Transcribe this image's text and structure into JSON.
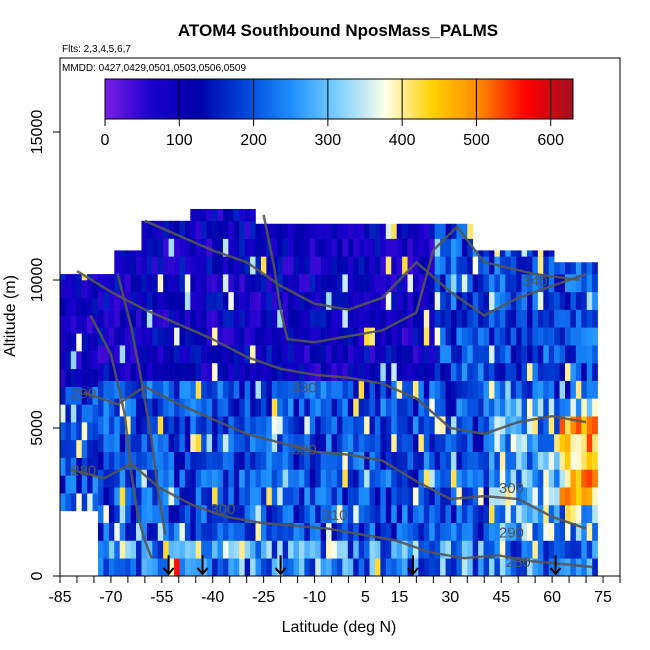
{
  "chart_data": {
    "type": "heatmap",
    "title": "ATOM4 Southbound NposMass_PALMS",
    "subtitle_flights": "Flts: 2,3,4,5,6,7",
    "subtitle_dates": "MMDD: 0427,0429,0501,0503,0506,0509",
    "xlabel": "Latitude (deg N)",
    "ylabel": "Altitude (m)",
    "xlim": [
      -85,
      80
    ],
    "ylim": [
      0,
      17500
    ],
    "x_ticks": [
      -85,
      -70,
      -55,
      -40,
      -25,
      -10,
      5,
      15,
      30,
      45,
      60,
      75
    ],
    "y_ticks": [
      0,
      5000,
      10000,
      15000
    ],
    "colorbar": {
      "range": [
        0,
        630
      ],
      "ticks": [
        0,
        100,
        200,
        300,
        400,
        500,
        600
      ],
      "colors": [
        "#7a1fe6",
        "#1a00cc",
        "#0000aa",
        "#0046d9",
        "#1e90ff",
        "#7fd0ff",
        "#ffffe8",
        "#ffd000",
        "#ff8800",
        "#ff0000",
        "#a01020"
      ]
    },
    "theta_contour_labels": [
      {
        "text": "340",
        "lat": 55,
        "alt": 9800
      },
      {
        "text": "330",
        "lat": -13,
        "alt": 6200
      },
      {
        "text": "320",
        "lat": -13,
        "alt": 4100
      },
      {
        "text": "310",
        "lat": -4,
        "alt": 1900
      },
      {
        "text": "300",
        "lat": -37,
        "alt": 2100
      },
      {
        "text": "300",
        "lat": 48,
        "alt": 2800
      },
      {
        "text": "290",
        "lat": -78,
        "alt": 6000
      },
      {
        "text": "290",
        "lat": 48,
        "alt": 1300
      },
      {
        "text": "280",
        "lat": -78,
        "alt": 3400
      },
      {
        "text": "280",
        "lat": 50,
        "alt": 300
      }
    ],
    "profile_markers_lat": [
      -53,
      -43,
      -20,
      19,
      61
    ],
    "profile_marker_alt_top": 700
  }
}
